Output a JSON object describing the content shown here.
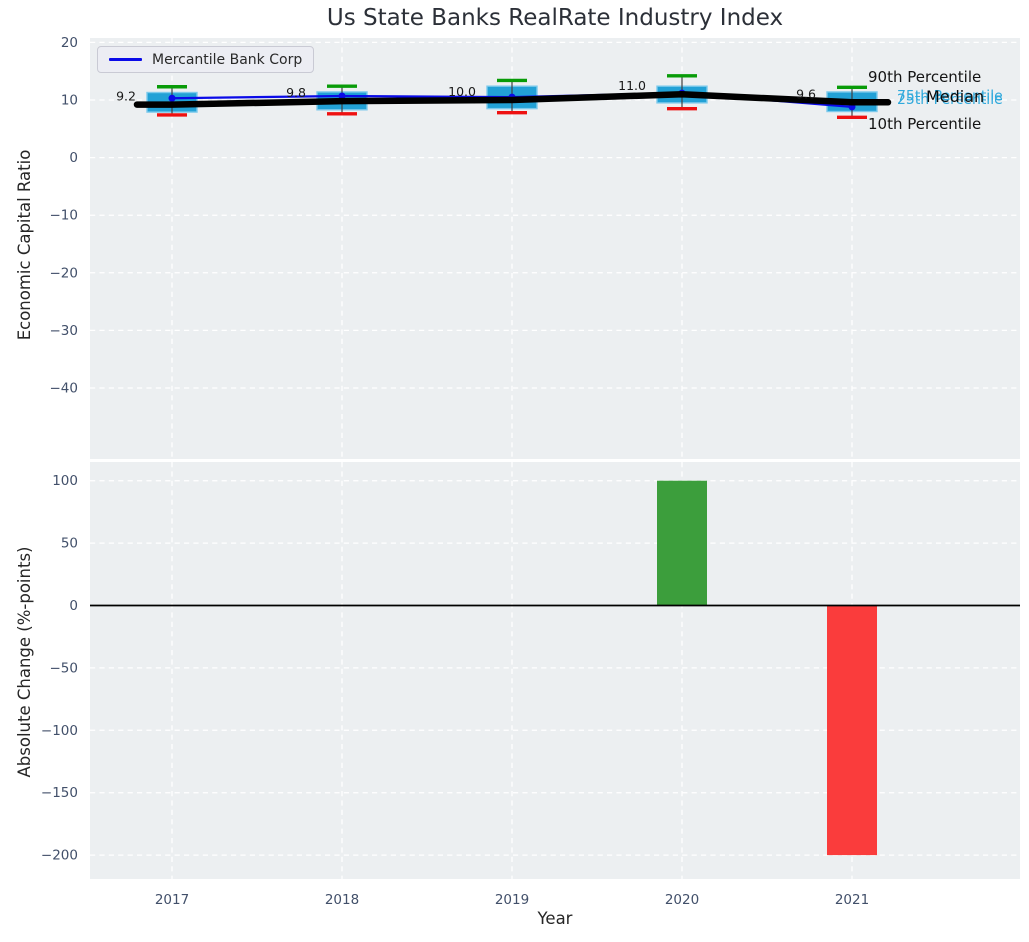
{
  "title": "Us State Banks RealRate Industry Index",
  "legend": {
    "label": "Mercantile Bank Corp",
    "line_color": "#0a0ae8"
  },
  "annotations": {
    "p90": "90th Percentile",
    "median": "Median",
    "p75": "75th Percentile",
    "p25": "25th Percentile",
    "p10": "10th Percentile"
  },
  "colors": {
    "axes_background": "#eceff1",
    "grid": "#ffffff",
    "box_fill": "#22a1d6",
    "box_edge": "#7dcaec",
    "whisker": "#3f3f3f",
    "cap_90": "#089b08",
    "cap_10": "#ee1111",
    "median_line": "#000000",
    "company_line": "#0a0ae8",
    "percentile_text": "#2fa9dc",
    "annotation_text": "#141414",
    "bar_positive": "#3c9e3c",
    "bar_negative": "#fa3c3c",
    "tick_label": "#42506a",
    "value_label": "#191919",
    "zero_line": "#000000"
  },
  "chart_data": [
    {
      "type": "boxplot+line",
      "title": "Us State Banks RealRate Industry Index",
      "ylabel": "Economic Capital Ratio",
      "x": [
        2017,
        2018,
        2019,
        2020,
        2021
      ],
      "ylim": [
        -52.3,
        20.8
      ],
      "yticks": [
        20,
        10,
        0,
        -10,
        -20,
        -30,
        -40
      ],
      "grid": true,
      "legend_position": "upper left",
      "series": {
        "company": {
          "label": "Mercantile Bank Corp",
          "values": [
            10.3,
            10.7,
            10.5,
            11.2,
            8.8
          ]
        },
        "median": {
          "label": "Median",
          "values": [
            9.2,
            9.8,
            10.0,
            11.0,
            9.6
          ],
          "labels": [
            "9.2",
            "9.8",
            "10.0",
            "11.0",
            "9.6"
          ]
        },
        "p90": {
          "label": "90th Percentile",
          "values": [
            12.3,
            12.4,
            13.4,
            14.2,
            12.2
          ]
        },
        "p75": {
          "label": "75th Percentile",
          "values": [
            11.3,
            11.4,
            12.4,
            12.4,
            11.4
          ]
        },
        "p25": {
          "label": "25th Percentile",
          "values": [
            7.9,
            8.3,
            8.5,
            9.5,
            8.0
          ]
        },
        "p10": {
          "label": "10th Percentile",
          "values": [
            7.4,
            7.6,
            7.8,
            8.5,
            7.0
          ]
        }
      }
    },
    {
      "type": "bar",
      "ylabel": "Absolute Change (%-points)",
      "xlabel": "Year",
      "categories": [
        2017,
        2018,
        2019,
        2020,
        2021
      ],
      "values": [
        null,
        null,
        null,
        100,
        -200
      ],
      "bar_colors": [
        null,
        null,
        null,
        "#3c9e3c",
        "#fa3c3c"
      ],
      "ylim": [
        -219,
        115
      ],
      "yticks": [
        100,
        50,
        0,
        -50,
        -100,
        -150,
        -200
      ],
      "grid": true,
      "zero_line": true
    }
  ]
}
